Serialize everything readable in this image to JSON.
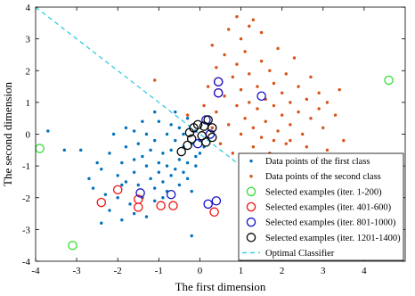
{
  "chart_data": {
    "type": "scatter",
    "xlabel": "The first dimension",
    "ylabel": "The second dimension",
    "xlim": [
      -4,
      5
    ],
    "ylim": [
      -4,
      4
    ],
    "x_ticks": [
      -4,
      -3,
      -2,
      -1,
      0,
      1,
      2,
      3,
      4
    ],
    "y_ticks": [
      -4,
      -3,
      -2,
      -1,
      0,
      1,
      2,
      3,
      4
    ],
    "grid": false,
    "legend_position": "bottom-right",
    "colors": {
      "class1": "#0072BD",
      "class2": "#D95319",
      "iter1": "#33DD33",
      "iter2": "#EE1111",
      "iter3": "#1111CC",
      "iter4": "#000000",
      "classifier": "#33CCDD"
    },
    "series": [
      {
        "name": "Data points of the first class",
        "marker": "dot",
        "color": "#0072BD",
        "points": [
          [
            -2.7,
            -1.4
          ],
          [
            -2.6,
            -1.7
          ],
          [
            -2.5,
            -0.9
          ],
          [
            -2.4,
            -1.1
          ],
          [
            -2.4,
            -2.8
          ],
          [
            -2.3,
            -1.9
          ],
          [
            -2.2,
            -0.6
          ],
          [
            -2.2,
            -2.4
          ],
          [
            -2.1,
            0.0
          ],
          [
            -2.0,
            -1.3
          ],
          [
            -2.0,
            -2.0
          ],
          [
            -1.9,
            -0.9
          ],
          [
            -1.9,
            -2.7
          ],
          [
            -1.8,
            0.2
          ],
          [
            -1.8,
            -0.4
          ],
          [
            -1.8,
            -1.5
          ],
          [
            -1.7,
            -2.2
          ],
          [
            -1.6,
            0.1
          ],
          [
            -1.6,
            -0.8
          ],
          [
            -1.6,
            -1.2
          ],
          [
            -1.6,
            -2.5
          ],
          [
            -1.5,
            -0.3
          ],
          [
            -1.5,
            -1.6
          ],
          [
            -1.4,
            0.4
          ],
          [
            -1.4,
            -0.7
          ],
          [
            -1.4,
            -2.0
          ],
          [
            -1.3,
            0.0
          ],
          [
            -1.3,
            -1.0
          ],
          [
            -1.3,
            -2.6
          ],
          [
            -1.2,
            -0.5
          ],
          [
            -1.2,
            -1.4
          ],
          [
            -1.1,
            0.7
          ],
          [
            -1.1,
            -0.2
          ],
          [
            -1.1,
            -1.7
          ],
          [
            -1.1,
            -2.1
          ],
          [
            -1.0,
            -0.9
          ],
          [
            -1.0,
            -1.2
          ],
          [
            -1.0,
            0.4
          ],
          [
            -0.9,
            -0.6
          ],
          [
            -0.9,
            -1.5
          ],
          [
            -0.9,
            -2.0
          ],
          [
            -0.8,
            0.0
          ],
          [
            -0.8,
            -1.0
          ],
          [
            -0.8,
            -1.8
          ],
          [
            -0.7,
            0.3
          ],
          [
            -0.7,
            -0.5
          ],
          [
            -0.7,
            -1.3
          ],
          [
            -0.6,
            0.7
          ],
          [
            -0.6,
            -0.2
          ],
          [
            -0.6,
            -1.1
          ],
          [
            -0.5,
            0.2
          ],
          [
            -0.5,
            -0.8
          ],
          [
            -0.5,
            -1.6
          ],
          [
            -0.4,
            0.0
          ],
          [
            -0.4,
            -0.4
          ],
          [
            -0.4,
            -1.2
          ],
          [
            -0.3,
            0.5
          ],
          [
            -0.3,
            -0.9
          ],
          [
            -0.3,
            -1.4
          ],
          [
            -0.2,
            -0.3
          ],
          [
            -0.2,
            -1.8
          ],
          [
            -0.1,
            0.1
          ],
          [
            -0.1,
            -0.7
          ],
          [
            -0.1,
            -1.0
          ],
          [
            0.0,
            -0.2
          ],
          [
            0.0,
            -0.6
          ],
          [
            0.1,
            -0.4
          ],
          [
            -0.2,
            -3.2
          ],
          [
            -3.7,
            0.1
          ],
          [
            -3.3,
            -0.5
          ],
          [
            -2.9,
            -0.5
          ],
          [
            -1.9,
            -1.6
          ]
        ]
      },
      {
        "name": "Data points of the second class",
        "marker": "dot",
        "color": "#D95319",
        "points": [
          [
            -1.1,
            1.7
          ],
          [
            -0.3,
            0.6
          ],
          [
            0.1,
            0.9
          ],
          [
            0.2,
            1.5
          ],
          [
            0.3,
            0.2
          ],
          [
            0.4,
            2.1
          ],
          [
            0.4,
            0.7
          ],
          [
            0.5,
            -0.3
          ],
          [
            0.6,
            1.2
          ],
          [
            0.6,
            2.5
          ],
          [
            0.7,
            3.3
          ],
          [
            0.7,
            0.3
          ],
          [
            0.8,
            1.8
          ],
          [
            0.8,
            -0.6
          ],
          [
            0.9,
            0.9
          ],
          [
            0.9,
            2.2
          ],
          [
            1.0,
            0.0
          ],
          [
            1.0,
            1.4
          ],
          [
            1.0,
            3.0
          ],
          [
            1.1,
            0.5
          ],
          [
            1.1,
            2.6
          ],
          [
            1.1,
            -0.9
          ],
          [
            1.2,
            1.0
          ],
          [
            1.2,
            1.9
          ],
          [
            1.3,
            0.2
          ],
          [
            1.3,
            -0.4
          ],
          [
            1.3,
            3.6
          ],
          [
            1.4,
            0.8
          ],
          [
            1.4,
            1.5
          ],
          [
            1.5,
            2.3
          ],
          [
            1.5,
            -0.1
          ],
          [
            1.6,
            1.1
          ],
          [
            1.6,
            0.4
          ],
          [
            1.7,
            2.0
          ],
          [
            1.7,
            -0.6
          ],
          [
            1.8,
            0.9
          ],
          [
            1.8,
            1.6
          ],
          [
            1.9,
            0.1
          ],
          [
            1.9,
            2.7
          ],
          [
            2.0,
            0.6
          ],
          [
            2.0,
            1.3
          ],
          [
            2.1,
            -0.3
          ],
          [
            2.1,
            1.9
          ],
          [
            2.2,
            0.3
          ],
          [
            2.2,
            1.0
          ],
          [
            2.3,
            2.4
          ],
          [
            2.3,
            -0.7
          ],
          [
            2.4,
            0.7
          ],
          [
            2.4,
            1.5
          ],
          [
            2.5,
            0.0
          ],
          [
            2.6,
            1.1
          ],
          [
            2.6,
            -0.4
          ],
          [
            2.7,
            0.5
          ],
          [
            2.7,
            1.8
          ],
          [
            2.8,
            -0.9
          ],
          [
            2.9,
            0.8
          ],
          [
            2.9,
            1.3
          ],
          [
            3.0,
            0.2
          ],
          [
            3.1,
            1.0
          ],
          [
            3.1,
            -0.5
          ],
          [
            3.3,
            0.6
          ],
          [
            3.4,
            1.4
          ],
          [
            3.5,
            -0.2
          ],
          [
            2.2,
            -0.2
          ],
          [
            1.2,
            3.4
          ],
          [
            0.9,
            3.7
          ],
          [
            1.5,
            3.2
          ],
          [
            0.3,
            2.8
          ],
          [
            1.8,
            -0.2
          ],
          [
            2.5,
            -0.9
          ]
        ]
      },
      {
        "name": "Selected examples (iter. 1-200)",
        "marker": "circle",
        "color": "#33DD33",
        "points": [
          [
            -3.9,
            -0.45
          ],
          [
            -3.1,
            -3.5
          ],
          [
            4.6,
            1.7
          ]
        ]
      },
      {
        "name": "Selected examples (iter. 401-600)",
        "marker": "circle",
        "color": "#EE1111",
        "points": [
          [
            -2.4,
            -2.15
          ],
          [
            -2.0,
            -1.75
          ],
          [
            -1.5,
            -2.05
          ],
          [
            -1.5,
            -2.3
          ],
          [
            -0.95,
            -2.25
          ],
          [
            -0.65,
            -2.25
          ],
          [
            0.45,
            1.65
          ],
          [
            0.45,
            1.3
          ],
          [
            0.35,
            -2.45
          ]
        ]
      },
      {
        "name": "Selected examples (iter. 801-1000)",
        "marker": "circle",
        "color": "#1111CC",
        "points": [
          [
            -1.45,
            -1.85
          ],
          [
            -0.7,
            -1.9
          ],
          [
            0.45,
            1.65
          ],
          [
            0.45,
            1.3
          ],
          [
            1.5,
            1.2
          ],
          [
            0.2,
            -2.2
          ],
          [
            0.4,
            -2.1
          ],
          [
            -0.05,
            -0.3
          ],
          [
            0.15,
            0.45
          ],
          [
            0.25,
            0.0
          ]
        ]
      },
      {
        "name": "Selected examples (iter. 1201-1400)",
        "marker": "circle",
        "color": "#000000",
        "points": [
          [
            -0.45,
            -0.55
          ],
          [
            -0.3,
            -0.35
          ],
          [
            -0.2,
            -0.15
          ],
          [
            -0.15,
            0.2
          ],
          [
            -0.05,
            0.3
          ],
          [
            0.05,
            -0.05
          ],
          [
            0.1,
            0.25
          ],
          [
            0.15,
            -0.25
          ],
          [
            0.2,
            0.45
          ],
          [
            0.3,
            0.2
          ],
          [
            0.3,
            -0.1
          ],
          [
            -0.25,
            0.05
          ]
        ]
      },
      {
        "name": "Optimal Classifier",
        "marker": "dashed-line",
        "color": "#33CCDD",
        "points": [
          [
            -4,
            4
          ],
          [
            1.6,
            -1.6
          ]
        ]
      }
    ]
  }
}
